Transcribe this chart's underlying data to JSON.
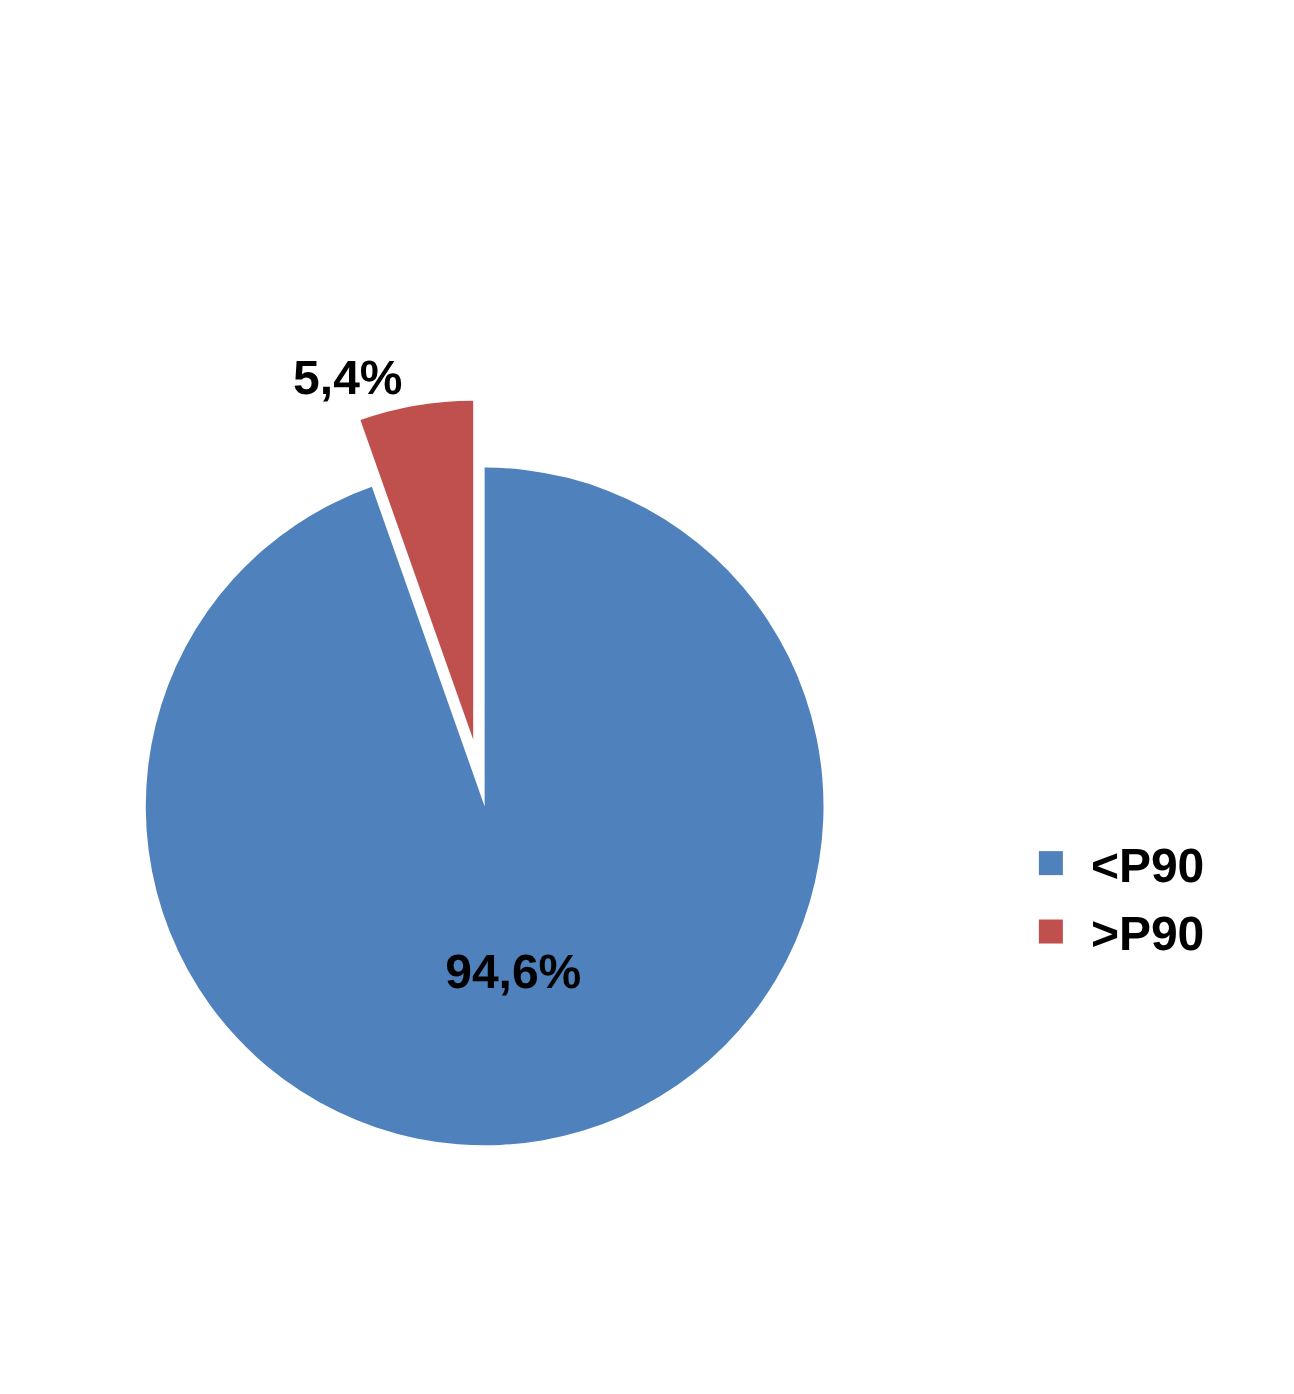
{
  "chart_data": {
    "type": "pie",
    "categories": [
      "<P90",
      ">P90"
    ],
    "values": [
      94.6,
      5.4
    ],
    "colors": [
      "#4f81bd",
      "#c0504d"
    ],
    "value_labels": [
      "94,6%",
      "5,4%"
    ],
    "legend": "right"
  }
}
